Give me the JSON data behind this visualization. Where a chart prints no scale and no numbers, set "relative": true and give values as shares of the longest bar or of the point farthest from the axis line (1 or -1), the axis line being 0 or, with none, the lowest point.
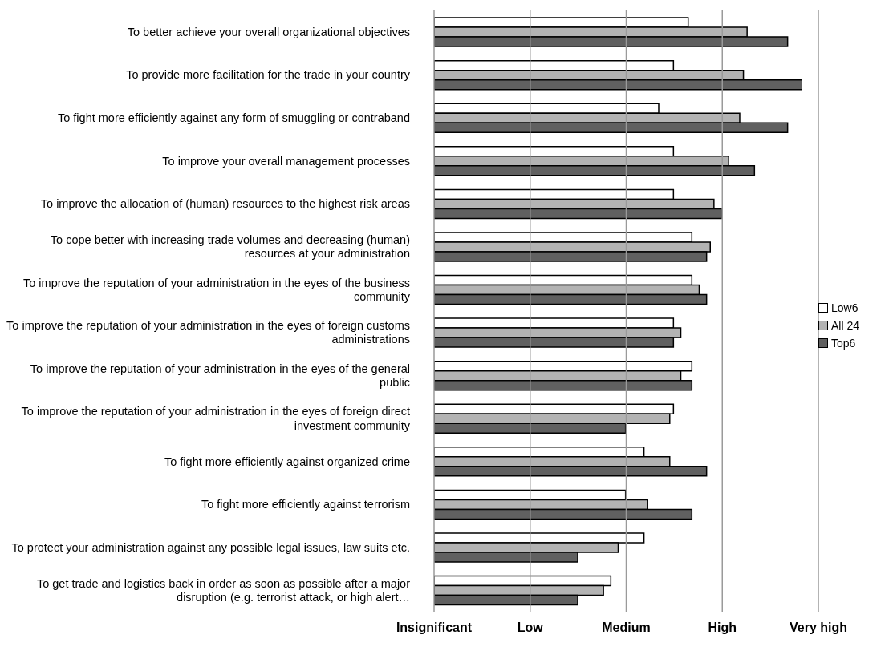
{
  "chart_data": {
    "type": "bar",
    "orientation": "horizontal",
    "relative": true,
    "categories": [
      "To better achieve your overall organizational objectives",
      "To provide more facilitation for the trade in your country",
      "To fight more efficiently against any form of smuggling or contraband",
      "To improve your overall management processes",
      "To improve the allocation of (human) resources to the highest risk areas",
      "To cope better with increasing trade volumes and decreasing (human) resources at your administration",
      "To improve the reputation of your administration in the eyes of the business community",
      "To improve the reputation of your administration in the eyes of foreign customs administrations",
      "To improve the reputation of your administration in the eyes of the general public",
      "To improve the reputation of your administration in the eyes of foreign direct investment community",
      "To fight more efficiently against organized crime",
      "To fight more efficiently against terrorism",
      "To protect your administration against any possible legal issues, law suits etc.",
      "To get trade and logistics back in order as soon as possible after a major disruption (e.g. terrorist attack, or high alert…"
    ],
    "series": [
      {
        "name": "Low6",
        "color": "#ffffff",
        "values": [
          0.69,
          0.65,
          0.61,
          0.65,
          0.65,
          0.7,
          0.7,
          0.65,
          0.7,
          0.65,
          0.57,
          0.52,
          0.57,
          0.48
        ]
      },
      {
        "name": "All 24",
        "color": "#b3b3b3",
        "values": [
          0.85,
          0.84,
          0.83,
          0.8,
          0.76,
          0.75,
          0.72,
          0.67,
          0.67,
          0.64,
          0.64,
          0.58,
          0.5,
          0.46
        ]
      },
      {
        "name": "Top6",
        "color": "#606060",
        "values": [
          0.96,
          1,
          0.96,
          0.87,
          0.78,
          0.74,
          0.74,
          0.65,
          0.7,
          0.52,
          0.74,
          0.7,
          0.39,
          0.39
        ]
      }
    ],
    "annotations": [
      "Insignificant",
      "Low",
      "Medium",
      "High",
      "Very high"
    ],
    "grid": "x",
    "legend": "right"
  }
}
